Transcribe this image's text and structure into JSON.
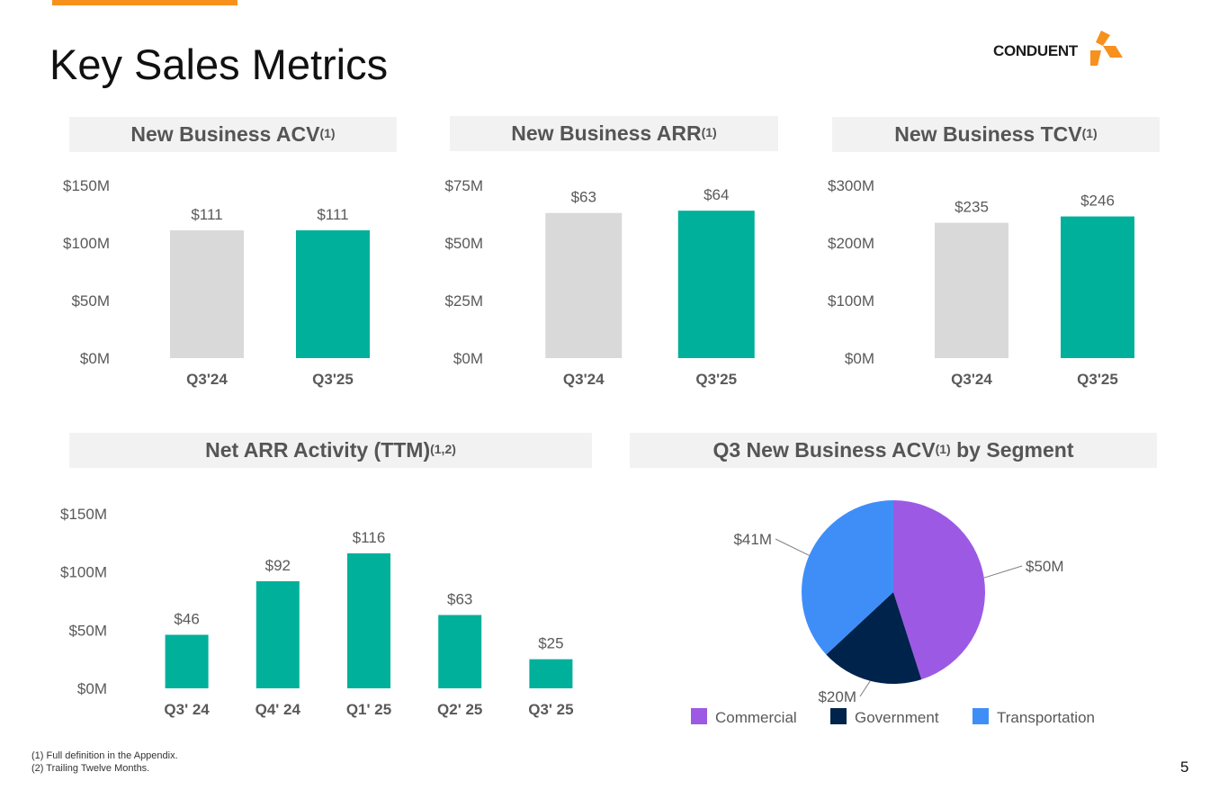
{
  "header": {
    "title": "Key Sales Metrics",
    "logo_text": "CONDUENT"
  },
  "colors": {
    "accent": "#f7911e",
    "prior": "#d9d9d9",
    "current": "#00b09b",
    "commercial": "#9c5ae4",
    "government": "#00234b",
    "transportation": "#3f8ef8"
  },
  "panels": {
    "acv": {
      "title": "New Business ACV",
      "sup": "(1)"
    },
    "arr": {
      "title": "New Business ARR",
      "sup": "(1)"
    },
    "tcv": {
      "title": "New Business TCV",
      "sup": "(1)"
    },
    "net_arr": {
      "title": "Net ARR Activity (TTM)",
      "sup": "(1,2)"
    },
    "segment": {
      "title_a": "Q3 New Business ACV",
      "sup": "(1)",
      "title_b": " by Segment"
    }
  },
  "chart_data": [
    {
      "id": "acv",
      "type": "bar",
      "title": "New Business ACV(1)",
      "categories": [
        "Q3'24",
        "Q3'25"
      ],
      "values": [
        111,
        111
      ],
      "labels": [
        "$111",
        "$111"
      ],
      "bar_colors": [
        "#d9d9d9",
        "#00b09b"
      ],
      "ylim": [
        0,
        150
      ],
      "yticks": [
        "$0M",
        "$50M",
        "$100M",
        "$150M"
      ]
    },
    {
      "id": "arr",
      "type": "bar",
      "title": "New Business ARR(1)",
      "categories": [
        "Q3'24",
        "Q3'25"
      ],
      "values": [
        63,
        64
      ],
      "labels": [
        "$63",
        "$64"
      ],
      "bar_colors": [
        "#d9d9d9",
        "#00b09b"
      ],
      "ylim": [
        0,
        75
      ],
      "yticks": [
        "$0M",
        "$25M",
        "$50M",
        "$75M"
      ]
    },
    {
      "id": "tcv",
      "type": "bar",
      "title": "New Business TCV(1)",
      "categories": [
        "Q3'24",
        "Q3'25"
      ],
      "values": [
        235,
        246
      ],
      "labels": [
        "$235",
        "$246"
      ],
      "bar_colors": [
        "#d9d9d9",
        "#00b09b"
      ],
      "ylim": [
        0,
        300
      ],
      "yticks": [
        "$0M",
        "$100M",
        "$200M",
        "$300M"
      ]
    },
    {
      "id": "net_arr",
      "type": "bar",
      "title": "Net ARR Activity (TTM)(1,2)",
      "categories": [
        "Q3' 24",
        "Q4' 24",
        "Q1' 25",
        "Q2' 25",
        "Q3' 25"
      ],
      "values": [
        46,
        92,
        116,
        63,
        25
      ],
      "labels": [
        "$46",
        "$92",
        "$116",
        "$63",
        "$25"
      ],
      "bar_colors": [
        "#00b09b",
        "#00b09b",
        "#00b09b",
        "#00b09b",
        "#00b09b"
      ],
      "ylim": [
        0,
        150
      ],
      "yticks": [
        "$0M",
        "$50M",
        "$100M",
        "$150M"
      ]
    },
    {
      "id": "segment",
      "type": "pie",
      "title": "Q3 New Business ACV(1) by Segment",
      "slices": [
        {
          "name": "Commercial",
          "value": 50,
          "label": "$50M",
          "color": "#9c5ae4"
        },
        {
          "name": "Government",
          "value": 20,
          "label": "$20M",
          "color": "#00234b"
        },
        {
          "name": "Transportation",
          "value": 41,
          "label": "$41M",
          "color": "#3f8ef8"
        }
      ],
      "legend_position": "bottom"
    }
  ],
  "footnotes": [
    "(1) Full definition in the Appendix.",
    "(2) Trailing Twelve Months."
  ],
  "page_number": "5"
}
